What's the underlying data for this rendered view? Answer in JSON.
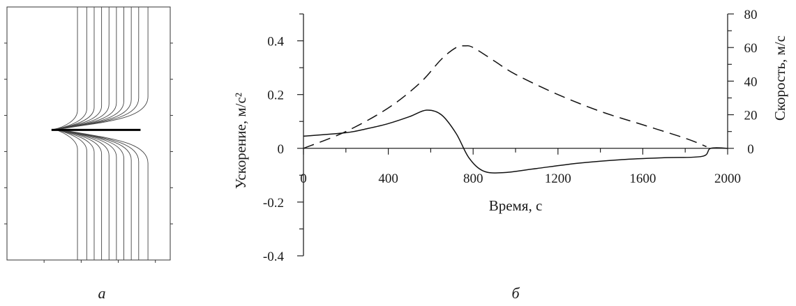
{
  "chart_data": [
    {
      "type": "line",
      "panel_label": "а",
      "grid": false,
      "note": "Схема: набор вертикальных линий с локальным изгибом, без подписей осей",
      "lines": {
        "x": [
          1.9,
          2.15,
          2.35,
          2.55,
          2.75,
          2.95,
          3.15,
          3.35,
          3.55,
          3.8
        ]
      },
      "bend_y": 3.4,
      "bump_tip_x": 1.2,
      "horizontal_segment": {
        "x": [
          1.2,
          3.6
        ],
        "y": 3.4
      },
      "xlim": [
        0,
        4.4
      ],
      "ylim": [
        0,
        7
      ]
    },
    {
      "type": "line",
      "panel_label": "б",
      "xlabel": "Время, с",
      "ylabel_left": "Ускорение, м/с²",
      "ylabel_right": "Скорость, м/с",
      "xlim": [
        0,
        2000
      ],
      "ylim_left": [
        -0.4,
        0.5
      ],
      "ylim_right": [
        0,
        80
      ],
      "x_ticks": [
        0,
        400,
        800,
        1200,
        1600,
        2000
      ],
      "y_ticks_left": [
        -0.4,
        -0.2,
        0,
        0.2,
        0.4
      ],
      "y_ticks_right": [
        0,
        20,
        40,
        60,
        80
      ],
      "grid": false,
      "series": [
        {
          "axis": "left",
          "style": "solid",
          "x": [
            0,
            200,
            300,
            400,
            500,
            580,
            650,
            720,
            780,
            850,
            950,
            1100,
            1300,
            1500,
            1700,
            1880,
            1920,
            2000
          ],
          "y": [
            0.045,
            0.058,
            0.073,
            0.092,
            0.118,
            0.142,
            0.125,
            0.055,
            -0.035,
            -0.085,
            -0.09,
            -0.075,
            -0.055,
            -0.042,
            -0.035,
            -0.03,
            0,
            0
          ]
        },
        {
          "axis": "right",
          "style": "dashed",
          "x": [
            0,
            200,
            400,
            550,
            650,
            720,
            760,
            800,
            900,
            1000,
            1200,
            1400,
            1600,
            1800,
            1900
          ],
          "y": [
            0,
            10,
            24,
            39,
            53,
            60,
            61,
            60,
            52,
            44,
            32,
            22,
            14,
            6,
            1
          ]
        }
      ]
    }
  ]
}
